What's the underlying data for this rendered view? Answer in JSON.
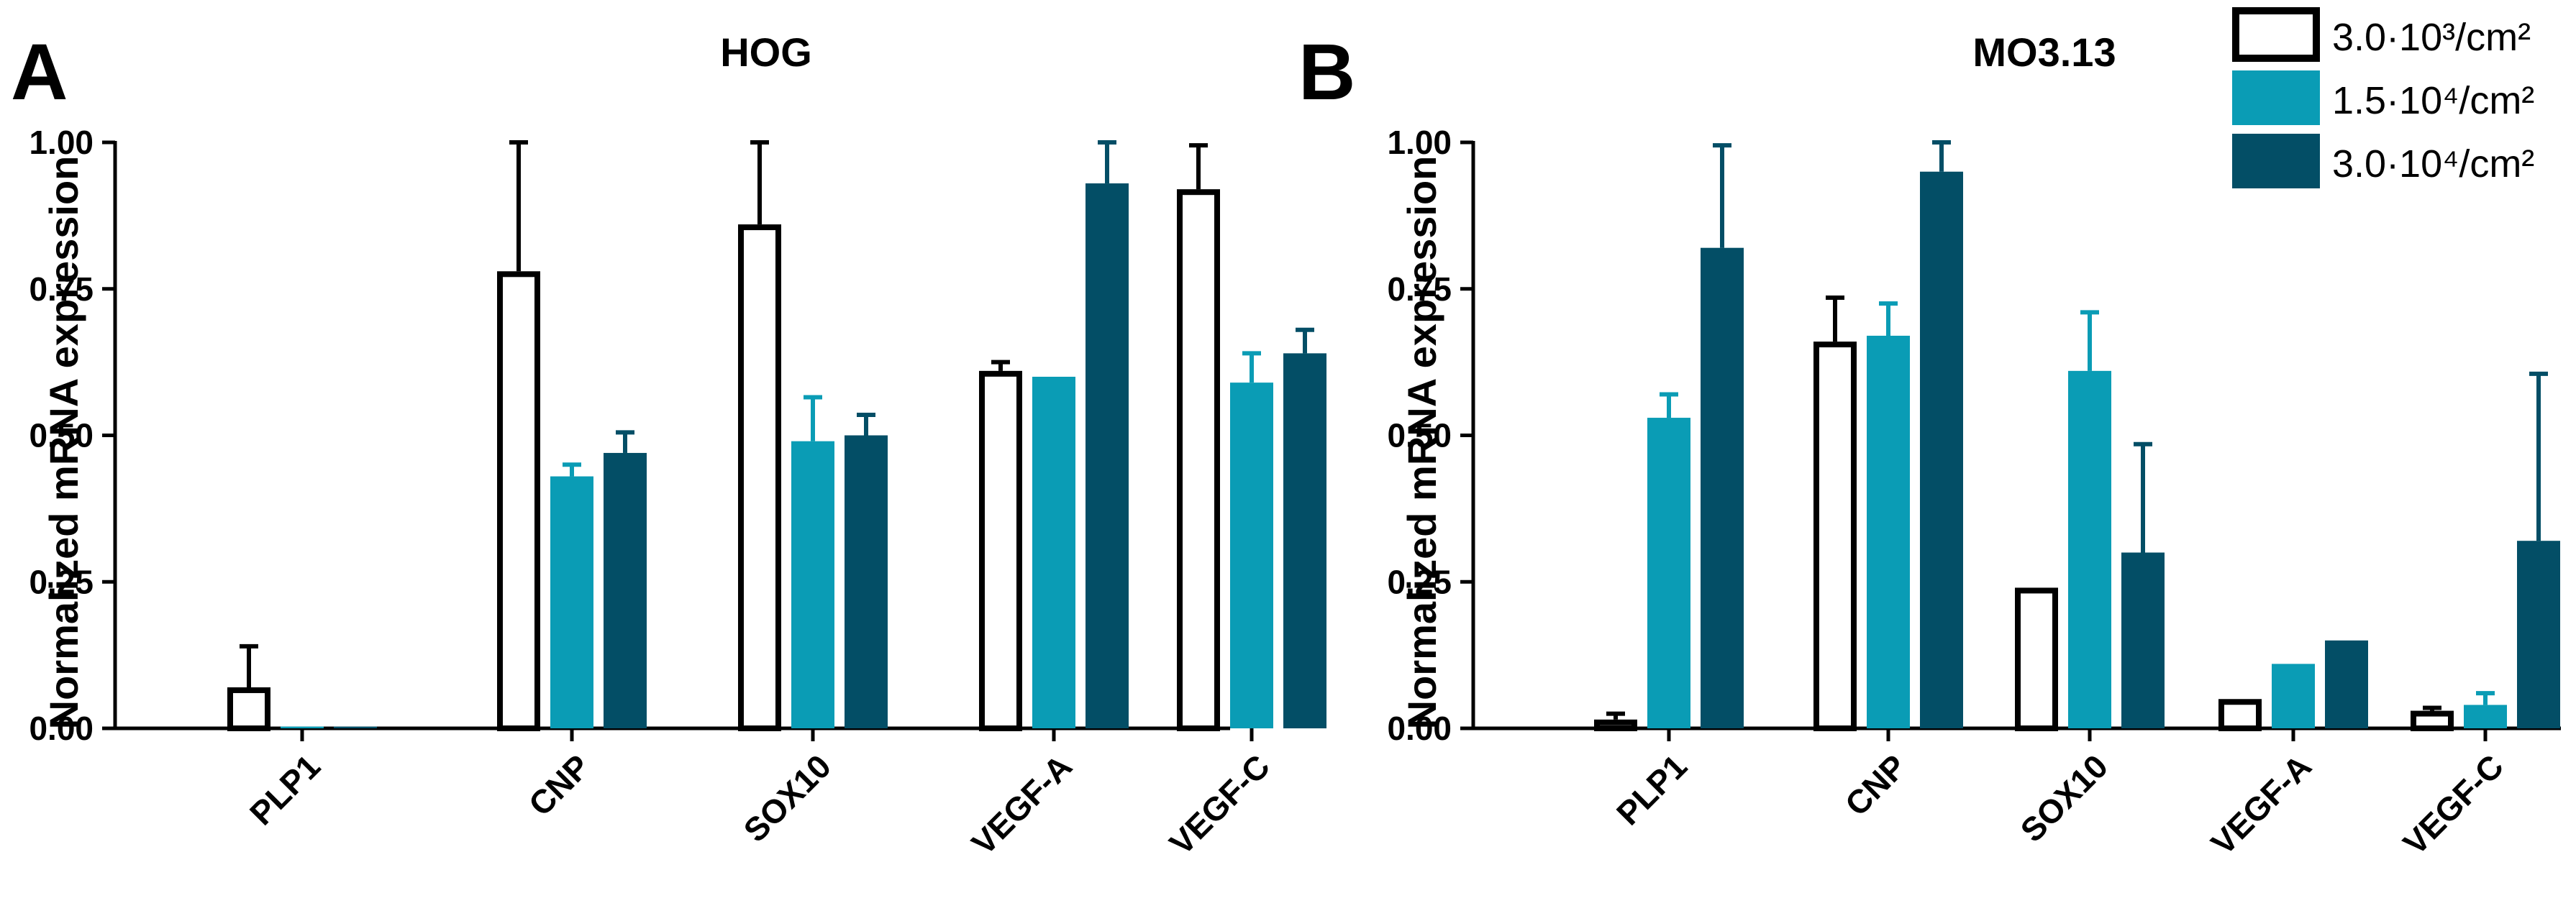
{
  "figure": {
    "legend": [
      {
        "label": "3.0·10³/cm²",
        "fill": "#ffffff",
        "stroke": "#000000"
      },
      {
        "label": "1.5·10⁴/cm²",
        "fill": "#0a9cb5",
        "stroke": "#0a9cb5"
      },
      {
        "label": "3.0·10⁴/cm²",
        "fill": "#034e66",
        "stroke": "#034e66"
      }
    ],
    "colors": {
      "low": "#ffffff",
      "mid": "#0a9cb5",
      "high": "#034e66",
      "axis": "#000000"
    }
  },
  "chart_data": [
    {
      "type": "bar",
      "panel_label": "A",
      "title": "HOG",
      "ylabel": "Normalized mRNA expression",
      "xlabel": "",
      "ylim": [
        0,
        1.0
      ],
      "yticks": [
        "0.00",
        "0.25",
        "0.50",
        "0.75",
        "1.00"
      ],
      "categories": [
        "PLP1",
        "CNP",
        "SOX10",
        "VEGF-A",
        "VEGF-C"
      ],
      "series": [
        {
          "name": "3.0·10³/cm²",
          "values": [
            0.07,
            0.78,
            0.86,
            0.61,
            0.92
          ],
          "errors": [
            0.07,
            0.22,
            0.14,
            0.015,
            0.075
          ]
        },
        {
          "name": "1.5·10⁴/cm²",
          "values": [
            0.003,
            0.43,
            0.49,
            0.6,
            0.59
          ],
          "errors": [
            0.0,
            0.02,
            0.075,
            0.0,
            0.05
          ]
        },
        {
          "name": "3.0·10⁴/cm²",
          "values": [
            0.003,
            0.47,
            0.5,
            0.93,
            0.64
          ],
          "errors": [
            0.0,
            0.035,
            0.035,
            0.07,
            0.04
          ]
        }
      ]
    },
    {
      "type": "bar",
      "panel_label": "B",
      "title": "MO3.13",
      "ylabel": "Normalized mRNA expression",
      "xlabel": "",
      "ylim": [
        0,
        1.0
      ],
      "yticks": [
        "0.00",
        "0.25",
        "0.50",
        "0.75",
        "1.00"
      ],
      "categories": [
        "PLP1",
        "CNP",
        "SOX10",
        "VEGF-A",
        "VEGF-C"
      ],
      "series": [
        {
          "name": "3.0·10³/cm²",
          "values": [
            0.015,
            0.66,
            0.24,
            0.05,
            0.03
          ],
          "errors": [
            0.01,
            0.075,
            0.0,
            0.0,
            0.005
          ]
        },
        {
          "name": "1.5·10⁴/cm²",
          "values": [
            0.53,
            0.67,
            0.61,
            0.11,
            0.04
          ],
          "errors": [
            0.04,
            0.055,
            0.1,
            0.0,
            0.02
          ]
        },
        {
          "name": "3.0·10⁴/cm²",
          "values": [
            0.82,
            0.95,
            0.3,
            0.15,
            0.32
          ],
          "errors": [
            0.175,
            0.05,
            0.185,
            0.0,
            0.285
          ]
        }
      ]
    }
  ]
}
